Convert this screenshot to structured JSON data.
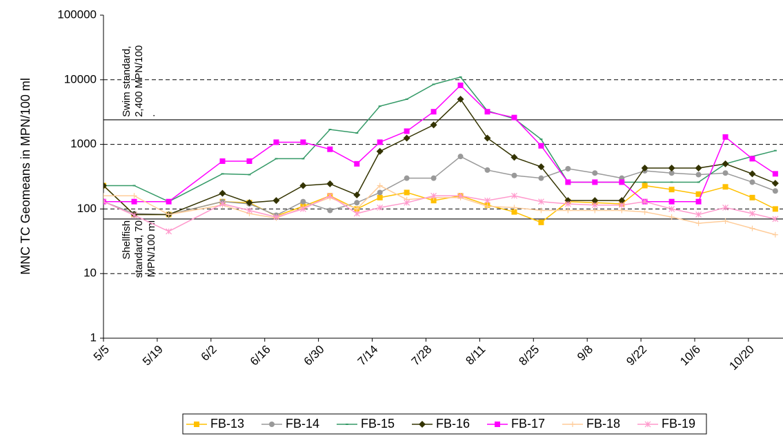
{
  "chart_data": {
    "type": "line",
    "y_label": "MNC TC Geomeans in MPN/100 ml",
    "log_scale": true,
    "grid": true,
    "legend_position": "bottom",
    "ylim": [
      1,
      100000
    ],
    "yticks": [
      1,
      10,
      100,
      1000,
      10000,
      100000
    ],
    "xlim": [
      0,
      177
    ],
    "xticks": [
      {
        "value": 0,
        "label": "5/5"
      },
      {
        "value": 14,
        "label": "5/19"
      },
      {
        "value": 28,
        "label": "6/2"
      },
      {
        "value": 42,
        "label": "6/16"
      },
      {
        "value": 56,
        "label": "6/30"
      },
      {
        "value": 70,
        "label": "7/14"
      },
      {
        "value": 84,
        "label": "7/28"
      },
      {
        "value": 98,
        "label": "8/11"
      },
      {
        "value": 112,
        "label": "8/25"
      },
      {
        "value": 126,
        "label": "9/8"
      },
      {
        "value": 140,
        "label": "9/22"
      },
      {
        "value": 154,
        "label": "10/6"
      },
      {
        "value": 168,
        "label": "10/20"
      }
    ],
    "x": [
      0,
      8,
      17,
      31,
      38,
      45,
      52,
      59,
      66,
      72,
      79,
      86,
      93,
      100,
      107,
      114,
      121,
      128,
      135,
      141,
      148,
      155,
      162,
      169,
      175
    ],
    "series": [
      {
        "name": "FB-13",
        "color": "#FFC000",
        "marker": "square",
        "values": [
          230,
          82,
          82,
          130,
          125,
          78,
          110,
          160,
          100,
          150,
          180,
          135,
          160,
          115,
          90,
          62,
          130,
          125,
          120,
          230,
          200,
          170,
          220,
          150,
          100
        ]
      },
      {
        "name": "FB-14",
        "color": "#999999",
        "marker": "circle",
        "values": [
          130,
          85,
          82,
          130,
          120,
          80,
          130,
          95,
          125,
          180,
          300,
          300,
          650,
          400,
          330,
          300,
          420,
          360,
          300,
          390,
          360,
          340,
          360,
          260,
          190
        ]
      },
      {
        "name": "FB-15",
        "color": "#339966",
        "marker": "dash",
        "values": [
          230,
          230,
          130,
          350,
          340,
          600,
          600,
          1700,
          1500,
          3900,
          5000,
          8500,
          11000,
          3300,
          2500,
          1200,
          260,
          260,
          260,
          260,
          260,
          260,
          500,
          650,
          800
        ]
      },
      {
        "name": "FB-16",
        "color": "#333300",
        "marker": "diamond",
        "values": [
          230,
          82,
          82,
          175,
          125,
          135,
          230,
          245,
          165,
          780,
          1250,
          2000,
          5000,
          1250,
          630,
          450,
          135,
          135,
          135,
          430,
          430,
          430,
          500,
          350,
          250
        ]
      },
      {
        "name": "FB-17",
        "color": "#FF00FF",
        "marker": "square",
        "values": [
          130,
          130,
          130,
          550,
          550,
          1080,
          1080,
          840,
          500,
          1080,
          1600,
          3200,
          8200,
          3200,
          2600,
          950,
          260,
          260,
          260,
          130,
          130,
          130,
          1300,
          600,
          350
        ]
      },
      {
        "name": "FB-18",
        "color": "#FFCC99",
        "marker": "plus",
        "values": [
          160,
          160,
          82,
          115,
          85,
          72,
          105,
          150,
          100,
          230,
          140,
          150,
          150,
          110,
          105,
          95,
          95,
          95,
          95,
          90,
          75,
          60,
          65,
          50,
          40
        ]
      },
      {
        "name": "FB-19",
        "color": "#FF99CC",
        "marker": "star",
        "values": [
          130,
          80,
          45,
          120,
          95,
          75,
          100,
          160,
          85,
          105,
          125,
          160,
          160,
          135,
          160,
          130,
          120,
          115,
          115,
          130,
          100,
          82,
          105,
          85,
          70
        ]
      }
    ],
    "reference_lines": [
      {
        "value": 2400,
        "label_lines": [
          "Swim standard,",
          "2,400 MPN/100",
          "."
        ]
      },
      {
        "value": 70,
        "label_lines": [
          "Shellfish",
          "standard, 70",
          "MPN/100 ml"
        ]
      }
    ]
  }
}
